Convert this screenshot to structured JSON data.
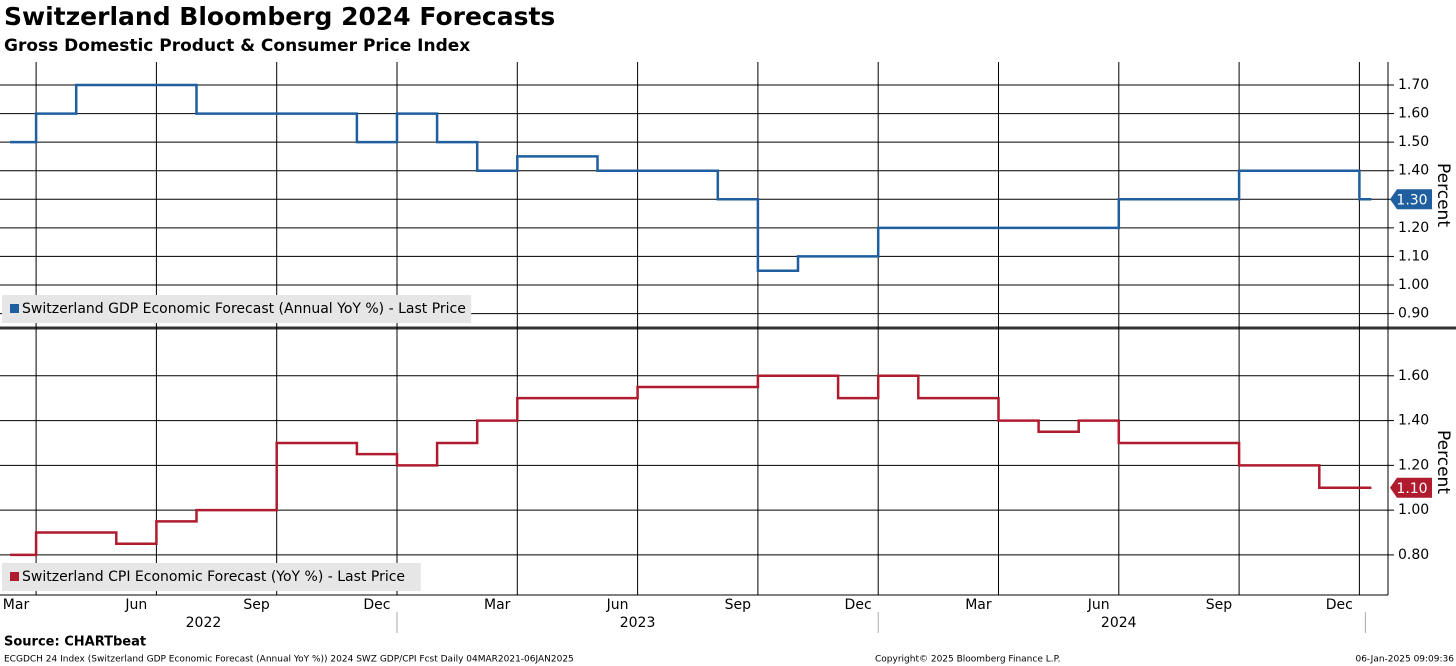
{
  "chart_data": [
    {
      "type": "line",
      "title": "Switzerland Bloomberg 2024 Forecasts",
      "subtitle": "Gross Domestic Product & Consumer Price Index",
      "y_label": "Percent",
      "x": [
        "2022-03",
        "2022-04",
        "2022-05",
        "2022-06",
        "2022-07",
        "2022-08",
        "2022-09",
        "2022-10",
        "2022-11",
        "2022-12",
        "2023-01",
        "2023-02",
        "2023-03",
        "2023-04",
        "2023-05",
        "2023-06",
        "2023-07",
        "2023-08",
        "2023-09",
        "2023-10",
        "2023-11",
        "2023-12",
        "2024-01",
        "2024-02",
        "2024-03",
        "2024-04",
        "2024-05",
        "2024-06",
        "2024-07",
        "2024-08",
        "2024-09",
        "2024-10",
        "2024-11",
        "2024-12",
        "2025-01"
      ],
      "series": [
        {
          "name": "Switzerland GDP Economic Forecast (Annual YoY %) - Last Price",
          "color": "#1f5fa0",
          "values": [
            1.5,
            1.6,
            1.7,
            1.7,
            1.7,
            1.6,
            1.6,
            1.6,
            1.6,
            1.5,
            1.6,
            1.5,
            1.4,
            1.45,
            1.45,
            1.4,
            1.4,
            1.4,
            1.3,
            1.05,
            1.1,
            1.1,
            1.2,
            1.2,
            1.2,
            1.2,
            1.2,
            1.2,
            1.3,
            1.3,
            1.3,
            1.4,
            1.4,
            1.4,
            1.3
          ],
          "last_label": "1.30"
        }
      ],
      "ylim": [
        0.86,
        1.77
      ],
      "yticks": [
        {
          "value": 0.9,
          "label": "0.90"
        },
        {
          "value": 1.0,
          "label": "1.00"
        },
        {
          "value": 1.1,
          "label": "1.10"
        },
        {
          "value": 1.2,
          "label": "1.20"
        },
        {
          "value": 1.3,
          "label": "1.30"
        },
        {
          "value": 1.4,
          "label": "1.40"
        },
        {
          "value": 1.5,
          "label": "1.50"
        },
        {
          "value": 1.6,
          "label": "1.60"
        },
        {
          "value": 1.7,
          "label": "1.70"
        }
      ],
      "grid": true
    },
    {
      "type": "line",
      "y_label": "Percent",
      "x": [
        "2022-03",
        "2022-04",
        "2022-05",
        "2022-06",
        "2022-07",
        "2022-08",
        "2022-09",
        "2022-10",
        "2022-11",
        "2022-12",
        "2023-01",
        "2023-02",
        "2023-03",
        "2023-04",
        "2023-05",
        "2023-06",
        "2023-07",
        "2023-08",
        "2023-09",
        "2023-10",
        "2023-11",
        "2023-12",
        "2024-01",
        "2024-02",
        "2024-03",
        "2024-04",
        "2024-05",
        "2024-06",
        "2024-07",
        "2024-08",
        "2024-09",
        "2024-10",
        "2024-11",
        "2024-12",
        "2025-01"
      ],
      "series": [
        {
          "name": "Switzerland CPI Economic Forecast (YoY %) - Last Price",
          "color": "#b01c2e",
          "values": [
            0.8,
            0.9,
            0.9,
            0.85,
            0.95,
            1.0,
            1.0,
            1.3,
            1.3,
            1.25,
            1.2,
            1.3,
            1.4,
            1.5,
            1.5,
            1.5,
            1.55,
            1.55,
            1.55,
            1.6,
            1.6,
            1.5,
            1.6,
            1.5,
            1.5,
            1.4,
            1.35,
            1.4,
            1.3,
            1.3,
            1.3,
            1.2,
            1.2,
            1.1,
            1.1
          ],
          "last_label": "1.10"
        }
      ],
      "ylim": [
        0.63,
        1.8
      ],
      "yticks": [
        {
          "value": 0.8,
          "label": "0.80"
        },
        {
          "value": 1.0,
          "label": "1.00"
        },
        {
          "value": 1.2,
          "label": "1.20"
        },
        {
          "value": 1.4,
          "label": "1.40"
        },
        {
          "value": 1.6,
          "label": "1.60"
        }
      ],
      "grid": true,
      "xticks": [
        {
          "value": "2022-03",
          "label": "Mar"
        },
        {
          "value": "2022-06",
          "label": "Jun"
        },
        {
          "value": "2022-09",
          "label": "Sep"
        },
        {
          "value": "2022-12",
          "label": "Dec"
        },
        {
          "value": "2023-03",
          "label": "Mar"
        },
        {
          "value": "2023-06",
          "label": "Jun"
        },
        {
          "value": "2023-09",
          "label": "Sep"
        },
        {
          "value": "2023-12",
          "label": "Dec"
        },
        {
          "value": "2024-03",
          "label": "Mar"
        },
        {
          "value": "2024-06",
          "label": "Jun"
        },
        {
          "value": "2024-09",
          "label": "Sep"
        },
        {
          "value": "2024-12",
          "label": "Dec"
        }
      ],
      "years": [
        "2022",
        "2023",
        "2024"
      ]
    }
  ],
  "source": "Source: CHARTbeat",
  "footer": {
    "left": "ECGDCH 24 Index (Switzerland GDP Economic Forecast (Annual YoY %)) 2024 SWZ GDP/CPI Fcst  Daily 04MAR2021-06JAN2025",
    "center": "Copyright© 2025 Bloomberg Finance L.P.",
    "right": "06-Jan-2025 09:09:36"
  }
}
